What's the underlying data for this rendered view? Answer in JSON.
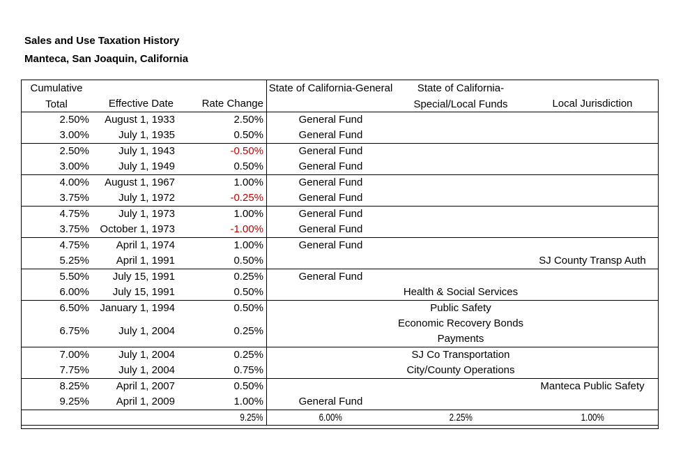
{
  "title": {
    "line1": "Sales and Use Taxation History",
    "line2": "Manteca, San Joaquin, California"
  },
  "colors": {
    "negative_red": "#c00000",
    "border": "#000000",
    "text": "#000000",
    "background": "#ffffff"
  },
  "table": {
    "header": {
      "cumulative_line1": "Cumulative",
      "cumulative_line2": "Total",
      "effective_date": "Effective Date",
      "rate_change": "Rate Change",
      "state_general": "State of California-General",
      "state_special_line1": "State of California-",
      "state_special_line2": "Special/Local Funds",
      "local_jurisdiction": "Local Jurisdiction"
    },
    "groups": [
      [
        {
          "cumulative": "2.50%",
          "date": "August 1, 1933",
          "change": "2.50%",
          "negative": false,
          "general": "General Fund",
          "special": "",
          "local": ""
        },
        {
          "cumulative": "3.00%",
          "date": "July 1, 1935",
          "change": "0.50%",
          "negative": false,
          "general": "General Fund",
          "special": "",
          "local": ""
        }
      ],
      [
        {
          "cumulative": "2.50%",
          "date": "July 1, 1943",
          "change": "-0.50%",
          "negative": true,
          "general": "General Fund",
          "special": "",
          "local": ""
        },
        {
          "cumulative": "3.00%",
          "date": "July 1, 1949",
          "change": "0.50%",
          "negative": false,
          "general": "General Fund",
          "special": "",
          "local": ""
        }
      ],
      [
        {
          "cumulative": "4.00%",
          "date": "August 1, 1967",
          "change": "1.00%",
          "negative": false,
          "general": "General Fund",
          "special": "",
          "local": ""
        },
        {
          "cumulative": "3.75%",
          "date": "July 1, 1972",
          "change": "-0.25%",
          "negative": true,
          "general": "General Fund",
          "special": "",
          "local": ""
        }
      ],
      [
        {
          "cumulative": "4.75%",
          "date": "July 1, 1973",
          "change": "1.00%",
          "negative": false,
          "general": "General Fund",
          "special": "",
          "local": ""
        },
        {
          "cumulative": "3.75%",
          "date": "October 1, 1973",
          "change": "-1.00%",
          "negative": true,
          "general": "General Fund",
          "special": "",
          "local": ""
        }
      ],
      [
        {
          "cumulative": "4.75%",
          "date": "April 1, 1974",
          "change": "1.00%",
          "negative": false,
          "general": "General Fund",
          "special": "",
          "local": ""
        },
        {
          "cumulative": "5.25%",
          "date": "April 1, 1991",
          "change": "0.50%",
          "negative": false,
          "general": "",
          "special": "",
          "local": "SJ County Transp Auth"
        }
      ],
      [
        {
          "cumulative": "5.50%",
          "date": "July 15, 1991",
          "change": "0.25%",
          "negative": false,
          "general": "General Fund",
          "special": "",
          "local": ""
        },
        {
          "cumulative": "6.00%",
          "date": "July 15, 1991",
          "change": "0.50%",
          "negative": false,
          "general": "",
          "special": "Health & Social Services",
          "local": ""
        }
      ],
      [
        {
          "cumulative": "6.50%",
          "date": "January 1, 1994",
          "change": "0.50%",
          "negative": false,
          "general": "",
          "special": "Public Safety",
          "local": ""
        },
        {
          "cumulative": "6.75%",
          "date": "July 1, 2004",
          "change": "0.25%",
          "negative": false,
          "general": "",
          "special": "Economic Recovery Bonds Payments",
          "local": ""
        }
      ],
      [
        {
          "cumulative": "7.00%",
          "date": "July 1, 2004",
          "change": "0.25%",
          "negative": false,
          "general": "",
          "special": "SJ Co Transportation",
          "local": ""
        },
        {
          "cumulative": "7.75%",
          "date": "July 1, 2004",
          "change": "0.75%",
          "negative": false,
          "general": "",
          "special": "City/County Operations",
          "local": ""
        }
      ],
      [
        {
          "cumulative": "8.25%",
          "date": "April 1, 2007",
          "change": "0.50%",
          "negative": false,
          "general": "",
          "special": "",
          "local": "Manteca Public Safety"
        },
        {
          "cumulative": "9.25%",
          "date": "April 1, 2009",
          "change": "1.00%",
          "negative": false,
          "general": "General Fund",
          "special": "",
          "local": ""
        }
      ]
    ],
    "totals": {
      "rate_change": "9.25%",
      "state_general": "6.00%",
      "state_special": "2.25%",
      "local_jurisdiction": "1.00%"
    }
  }
}
